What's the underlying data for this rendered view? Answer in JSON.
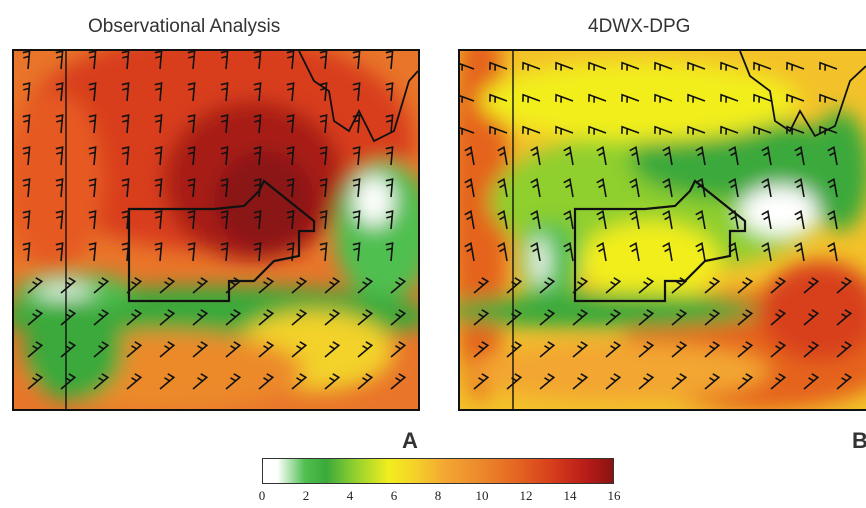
{
  "panels": [
    {
      "title": "Observational Analysis",
      "letter": "A"
    },
    {
      "title": "4DWX-DPG",
      "letter": "B"
    }
  ],
  "colorbar": {
    "ticks": [
      "0",
      "2",
      "4",
      "6",
      "8",
      "10",
      "12",
      "14",
      "16"
    ],
    "colors": [
      "#ffffff",
      "#3aa93a",
      "#8fcf2f",
      "#f2ee1e",
      "#f3a632",
      "#e56722",
      "#d8401b",
      "#b91d18",
      "#8a1212"
    ]
  }
}
